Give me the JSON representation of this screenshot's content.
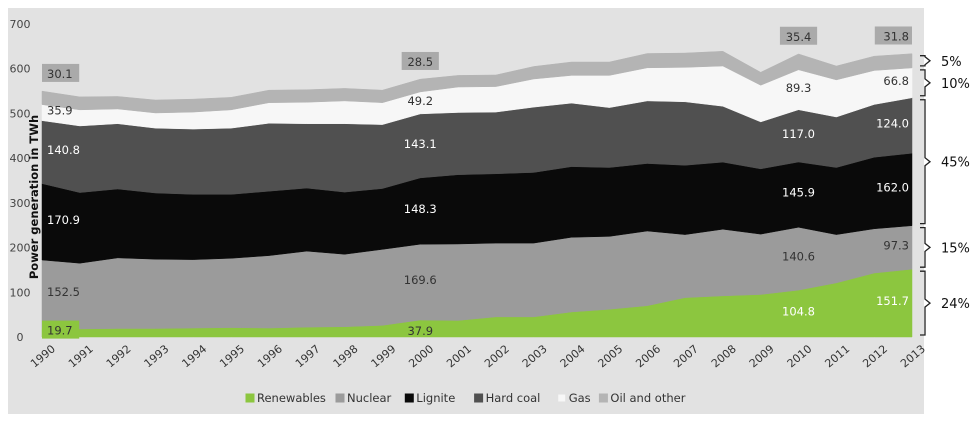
{
  "chart_data": {
    "type": "area",
    "stacked": true,
    "title": "",
    "xlabel": "",
    "ylabel": "Power generation in TWh",
    "ylim": [
      0,
      700
    ],
    "yticks": [
      0,
      100,
      200,
      300,
      400,
      500,
      600,
      700
    ],
    "grid": false,
    "legend_position": "bottom",
    "background_color": "#e2e2e2",
    "x": [
      "1990",
      "1991",
      "1992",
      "1993",
      "1994",
      "1995",
      "1996",
      "1997",
      "1998",
      "1999",
      "2000",
      "2001",
      "2002",
      "2003",
      "2004",
      "2005",
      "2006",
      "2007",
      "2008",
      "2009",
      "2010",
      "2011",
      "2012",
      "2013"
    ],
    "series": [
      {
        "name": "Renewables",
        "color": "#8cc63f",
        "values": [
          19.7,
          18,
          19,
          19,
          20,
          21,
          20,
          22,
          23,
          26,
          37.9,
          37,
          45,
          45,
          56,
          62,
          70,
          88,
          92,
          95,
          104.8,
          121,
          143,
          151.7
        ]
      },
      {
        "name": "Nuclear",
        "color": "#9b9b9b",
        "values": [
          152.5,
          147,
          158,
          155,
          153,
          155,
          162,
          170,
          162,
          170,
          169.6,
          171,
          165,
          165,
          167,
          163,
          167,
          141,
          149,
          135,
          140.6,
          108,
          99,
          97.3
        ]
      },
      {
        "name": "Lignite",
        "color": "#0a0a0a",
        "values": [
          170.9,
          158,
          154,
          148,
          146,
          143,
          144,
          141,
          139,
          136,
          148.3,
          155,
          155,
          158,
          158,
          154,
          151,
          155,
          150,
          146,
          145.9,
          150,
          160,
          162.0
        ]
      },
      {
        "name": "Hard coal",
        "color": "#505050",
        "values": [
          140.8,
          149,
          146,
          145,
          146,
          148,
          152,
          144,
          153,
          143,
          143.1,
          139,
          138,
          146,
          142,
          134,
          140,
          142,
          125,
          105,
          117.0,
          113,
          118,
          124.0
        ]
      },
      {
        "name": "Gas",
        "color": "#f7f7f7",
        "values": [
          35.9,
          36,
          33,
          34,
          38,
          41,
          46,
          48,
          51,
          49,
          49.2,
          57,
          57,
          63,
          62,
          72,
          74,
          77,
          90,
          82,
          89.3,
          83,
          76,
          66.8
        ]
      },
      {
        "name": "Oil and other",
        "color": "#b4b4b4",
        "values": [
          30.1,
          29,
          28,
          29,
          29,
          28,
          28,
          28,
          28,
          28,
          28.5,
          26,
          26,
          28,
          30,
          30,
          32,
          32,
          33,
          29,
          35.4,
          31,
          32,
          31.8
        ]
      }
    ],
    "data_labels": [
      {
        "series": "Renewables",
        "x": "1990",
        "text": "19.7",
        "boxed": true
      },
      {
        "series": "Nuclear",
        "x": "1990",
        "text": "152.5",
        "boxed": false
      },
      {
        "series": "Lignite",
        "x": "1990",
        "text": "170.9",
        "boxed": false
      },
      {
        "series": "Hard coal",
        "x": "1990",
        "text": "140.8",
        "boxed": false
      },
      {
        "series": "Gas",
        "x": "1990",
        "text": "35.9",
        "boxed": false
      },
      {
        "series": "Oil and other",
        "x": "1990",
        "text": "30.1",
        "boxed": true
      },
      {
        "series": "Renewables",
        "x": "2000",
        "text": "37.9",
        "boxed": false
      },
      {
        "series": "Nuclear",
        "x": "2000",
        "text": "169.6",
        "boxed": false
      },
      {
        "series": "Lignite",
        "x": "2000",
        "text": "148.3",
        "boxed": false
      },
      {
        "series": "Hard coal",
        "x": "2000",
        "text": "143.1",
        "boxed": false
      },
      {
        "series": "Gas",
        "x": "2000",
        "text": "49.2",
        "boxed": false
      },
      {
        "series": "Oil and other",
        "x": "2000",
        "text": "28.5",
        "boxed": true
      },
      {
        "series": "Renewables",
        "x": "2010",
        "text": "104.8",
        "boxed": false
      },
      {
        "series": "Nuclear",
        "x": "2010",
        "text": "140.6",
        "boxed": false
      },
      {
        "series": "Lignite",
        "x": "2010",
        "text": "145.9",
        "boxed": false
      },
      {
        "series": "Hard coal",
        "x": "2010",
        "text": "117.0",
        "boxed": false
      },
      {
        "series": "Gas",
        "x": "2010",
        "text": "89.3",
        "boxed": false
      },
      {
        "series": "Oil and other",
        "x": "2010",
        "text": "35.4",
        "boxed": true
      },
      {
        "series": "Renewables",
        "x": "2013",
        "text": "151.7",
        "boxed": false
      },
      {
        "series": "Nuclear",
        "x": "2013",
        "text": "97.3",
        "boxed": false
      },
      {
        "series": "Lignite",
        "x": "2013",
        "text": "162.0",
        "boxed": false
      },
      {
        "series": "Hard coal",
        "x": "2013",
        "text": "124.0",
        "boxed": false
      },
      {
        "series": "Gas",
        "x": "2013",
        "text": "66.8",
        "boxed": false
      },
      {
        "series": "Oil and other",
        "x": "2013",
        "text": "31.8",
        "boxed": true
      }
    ],
    "shares_2013": [
      {
        "series": "Oil and other",
        "text": "5%"
      },
      {
        "series": "Gas",
        "text": "10%"
      },
      {
        "series": "Hard coal",
        "text": "45%",
        "spans": [
          "Lignite",
          "Hard coal"
        ]
      },
      {
        "series": "Nuclear",
        "text": "15%"
      },
      {
        "series": "Renewables",
        "text": "24%"
      }
    ]
  }
}
